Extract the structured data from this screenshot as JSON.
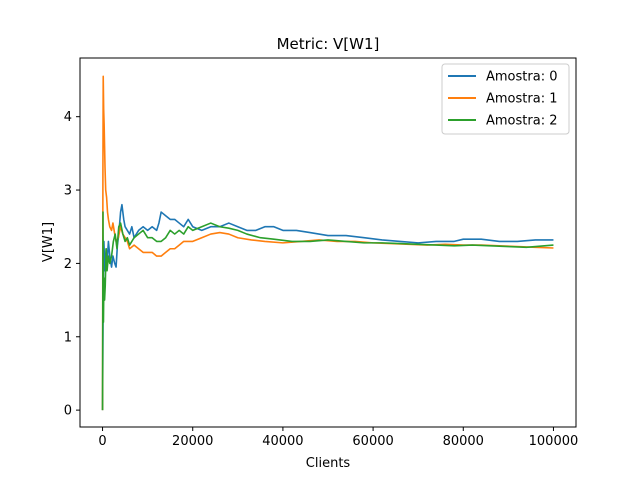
{
  "chart_data": {
    "type": "line",
    "title": "Metric: V[W1]",
    "xlabel": "Clients",
    "ylabel": "V[W1]",
    "xlim": [
      -5000,
      105000
    ],
    "ylim": [
      -0.23,
      4.8
    ],
    "xticks": [
      0,
      20000,
      40000,
      60000,
      80000,
      100000
    ],
    "xtick_labels": [
      "0",
      "20000",
      "40000",
      "60000",
      "80000",
      "100000"
    ],
    "yticks": [
      0,
      1,
      2,
      3,
      4
    ],
    "ytick_labels": [
      "0",
      "1",
      "2",
      "3",
      "4"
    ],
    "grid": false,
    "legend_position": "top-right",
    "series": [
      {
        "name": "Amostra: 0",
        "color": "#1f77b4",
        "x": [
          0,
          150,
          300,
          500,
          800,
          1000,
          1300,
          1600,
          2000,
          2300,
          2700,
          3000,
          3300,
          3600,
          4000,
          4300,
          4700,
          5000,
          5500,
          6000,
          6500,
          7000,
          7500,
          8000,
          9000,
          10000,
          11000,
          12000,
          12500,
          13000,
          14000,
          15000,
          16000,
          17000,
          18000,
          19000,
          20000,
          22000,
          24000,
          26000,
          28000,
          30000,
          32000,
          34000,
          36000,
          38000,
          40000,
          43000,
          46000,
          50000,
          54000,
          58000,
          62000,
          66000,
          70000,
          74000,
          78000,
          80000,
          84000,
          88000,
          92000,
          96000,
          100000
        ],
        "y": [
          0.0,
          1.6,
          2.3,
          1.9,
          2.2,
          2.0,
          2.3,
          2.1,
          1.95,
          2.1,
          2.0,
          1.95,
          2.25,
          2.4,
          2.7,
          2.8,
          2.6,
          2.5,
          2.45,
          2.4,
          2.5,
          2.35,
          2.4,
          2.45,
          2.5,
          2.45,
          2.5,
          2.45,
          2.55,
          2.7,
          2.65,
          2.6,
          2.6,
          2.55,
          2.5,
          2.6,
          2.5,
          2.45,
          2.5,
          2.5,
          2.55,
          2.5,
          2.45,
          2.45,
          2.5,
          2.5,
          2.45,
          2.45,
          2.42,
          2.38,
          2.38,
          2.35,
          2.32,
          2.3,
          2.28,
          2.3,
          2.3,
          2.33,
          2.33,
          2.3,
          2.3,
          2.32,
          2.32
        ]
      },
      {
        "name": "Amostra: 1",
        "color": "#ff7f0e",
        "x": [
          0,
          80,
          150,
          250,
          350,
          450,
          550,
          700,
          900,
          1100,
          1300,
          1600,
          2000,
          2300,
          2700,
          3000,
          3500,
          4000,
          4500,
          5000,
          5500,
          6000,
          7000,
          8000,
          9000,
          10000,
          11000,
          12000,
          13000,
          14000,
          15000,
          16000,
          17000,
          18000,
          19000,
          20000,
          22000,
          24000,
          26000,
          28000,
          30000,
          33000,
          36000,
          40000,
          44000,
          48000,
          52000,
          56000,
          60000,
          64000,
          68000,
          72000,
          76000,
          80000,
          84000,
          88000,
          92000,
          96000,
          100000
        ],
        "y": [
          0.0,
          3.2,
          4.55,
          4.1,
          3.9,
          3.6,
          3.3,
          3.0,
          2.9,
          2.7,
          2.6,
          2.5,
          2.45,
          2.55,
          2.4,
          2.3,
          2.35,
          2.5,
          2.4,
          2.35,
          2.3,
          2.2,
          2.25,
          2.2,
          2.15,
          2.15,
          2.15,
          2.1,
          2.1,
          2.15,
          2.2,
          2.2,
          2.25,
          2.3,
          2.3,
          2.3,
          2.35,
          2.4,
          2.42,
          2.4,
          2.35,
          2.32,
          2.3,
          2.28,
          2.3,
          2.32,
          2.3,
          2.3,
          2.28,
          2.27,
          2.26,
          2.25,
          2.26,
          2.25,
          2.25,
          2.24,
          2.23,
          2.22,
          2.21
        ]
      },
      {
        "name": "Amostra: 2",
        "color": "#2ca02c",
        "x": [
          0,
          100,
          200,
          300,
          450,
          600,
          800,
          1000,
          1300,
          1600,
          2000,
          2400,
          2800,
          3200,
          3600,
          4000,
          4500,
          5000,
          5500,
          6000,
          7000,
          8000,
          9000,
          10000,
          11000,
          12000,
          13000,
          14000,
          15000,
          16000,
          17000,
          18000,
          19000,
          20000,
          22000,
          24000,
          26000,
          28000,
          30000,
          32000,
          35000,
          38000,
          42000,
          46000,
          50000,
          54000,
          58000,
          62000,
          66000,
          70000,
          74000,
          78000,
          82000,
          86000,
          90000,
          94000,
          98000,
          100000
        ],
        "y": [
          0.0,
          2.7,
          1.2,
          1.8,
          1.5,
          1.7,
          2.2,
          1.9,
          2.1,
          2.0,
          2.1,
          2.3,
          2.4,
          2.2,
          2.5,
          2.55,
          2.4,
          2.3,
          2.35,
          2.25,
          2.35,
          2.4,
          2.45,
          2.35,
          2.35,
          2.3,
          2.3,
          2.35,
          2.45,
          2.4,
          2.45,
          2.4,
          2.5,
          2.45,
          2.5,
          2.55,
          2.5,
          2.48,
          2.45,
          2.4,
          2.35,
          2.33,
          2.3,
          2.3,
          2.32,
          2.3,
          2.28,
          2.28,
          2.27,
          2.26,
          2.25,
          2.24,
          2.25,
          2.24,
          2.23,
          2.22,
          2.24,
          2.25
        ]
      }
    ]
  }
}
